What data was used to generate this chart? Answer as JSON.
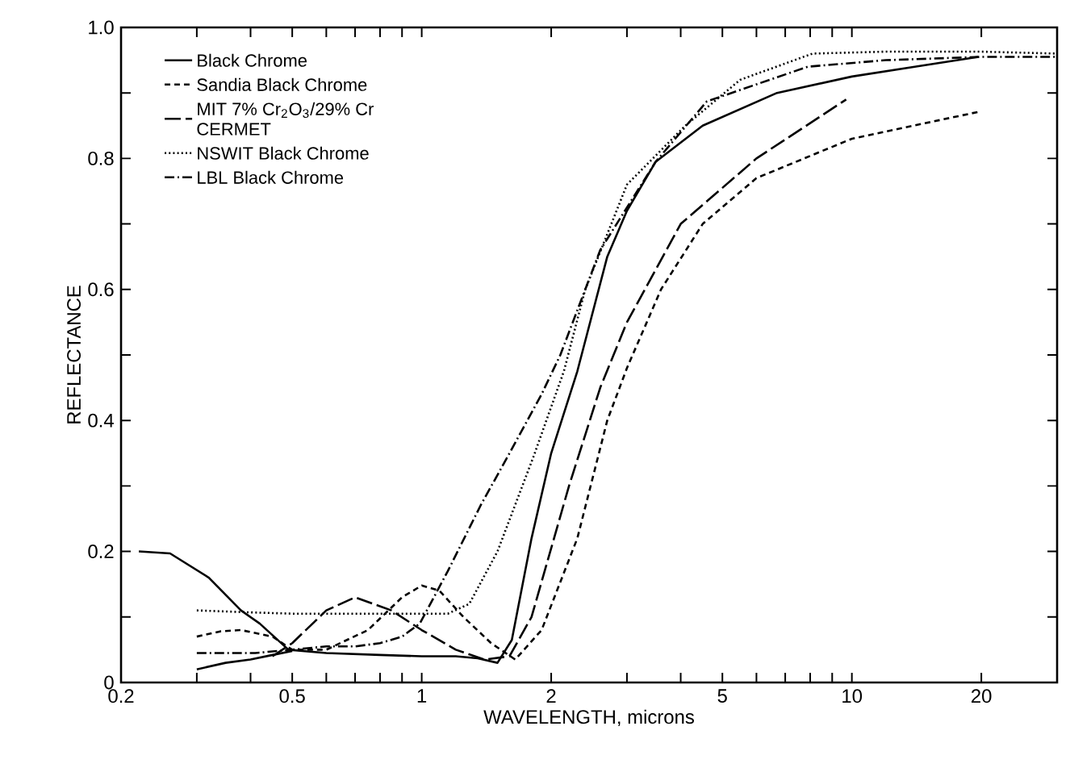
{
  "chart_data": {
    "type": "line",
    "xlabel": "WAVELENGTH, microns",
    "ylabel": "REFLECTANCE",
    "log": "x",
    "legend": "top left",
    "xlim": [
      0.2,
      30
    ],
    "ylim": [
      0,
      1.0
    ],
    "xticks": [
      0.2,
      {
        "value": 0.3,
        "label": null
      },
      {
        "value": 0.4,
        "label": null
      },
      0.5,
      {
        "value": 0.6,
        "label": null
      },
      {
        "value": 0.7,
        "label": null
      },
      {
        "value": 0.8,
        "label": null
      },
      {
        "value": 0.9,
        "label": null
      },
      1,
      2,
      {
        "value": 3,
        "label": null
      },
      {
        "value": 4,
        "label": null
      },
      5,
      {
        "value": 6,
        "label": null
      },
      {
        "value": 7,
        "label": null
      },
      {
        "value": 8,
        "label": null
      },
      {
        "value": 9,
        "label": null
      },
      10,
      20
    ],
    "yticks": [
      0,
      {
        "value": 0.1,
        "label": null
      },
      0.2,
      {
        "value": 0.3,
        "label": null
      },
      0.4,
      {
        "value": 0.5,
        "label": null
      },
      0.6,
      {
        "value": 0.7,
        "label": null
      },
      0.8,
      {
        "value": 0.9,
        "label": null
      },
      {
        "value": 1.0,
        "label": "1.0"
      }
    ],
    "series": [
      {
        "name": "Black Chrome",
        "color": "#000000",
        "line_style": "solid",
        "x": [
          0.22,
          0.26,
          0.32,
          0.38,
          0.42,
          0.49,
          0.6,
          0.8,
          1.0,
          1.2,
          1.35,
          1.5,
          1.62,
          1.8,
          2.0,
          2.3,
          2.7,
          3.0,
          3.5,
          4.5,
          6.7,
          10,
          14,
          19.7
        ],
        "values": [
          0.2,
          0.197,
          0.16,
          0.11,
          0.09,
          0.05,
          0.045,
          0.042,
          0.04,
          0.04,
          0.037,
          0.03,
          0.065,
          0.22,
          0.35,
          0.475,
          0.65,
          0.72,
          0.795,
          0.85,
          0.9,
          0.925,
          0.94,
          0.955
        ]
      },
      {
        "name": "Sandia Black Chrome",
        "color": "#000000",
        "line_style": "dashed",
        "x": [
          0.3,
          0.34,
          0.38,
          0.45,
          0.5,
          0.6,
          0.75,
          0.9,
          1.0,
          1.1,
          1.25,
          1.45,
          1.65,
          1.9,
          2.3,
          2.7,
          3.0,
          3.6,
          4.5,
          6,
          10,
          20
        ],
        "values": [
          0.07,
          0.078,
          0.08,
          0.07,
          0.05,
          0.05,
          0.08,
          0.13,
          0.148,
          0.14,
          0.1,
          0.06,
          0.035,
          0.08,
          0.22,
          0.4,
          0.48,
          0.6,
          0.7,
          0.77,
          0.83,
          0.872
        ]
      },
      {
        "name": "MIT 7% Cr$_{2}$O$_{3}$/29% Cr CERMET",
        "color": "#000000",
        "line_style": "long dashed",
        "x": [
          0.45,
          0.5,
          0.6,
          0.7,
          0.85,
          1.0,
          1.2,
          1.4,
          1.6,
          1.8,
          2.2,
          2.6,
          3.0,
          4,
          6,
          9.7
        ],
        "values": [
          0.04,
          0.06,
          0.11,
          0.13,
          0.11,
          0.08,
          0.05,
          0.035,
          0.04,
          0.1,
          0.3,
          0.45,
          0.55,
          0.7,
          0.8,
          0.89
        ]
      },
      {
        "name": "NSWIT Black Chrome",
        "color": "#000000",
        "line_style": "dotted",
        "x": [
          0.3,
          0.4,
          0.5,
          0.7,
          1.0,
          1.15,
          1.29,
          1.5,
          1.82,
          2.14,
          2.4,
          3.0,
          4.1,
          5.5,
          8.1,
          12,
          20,
          30
        ],
        "values": [
          0.11,
          0.107,
          0.105,
          0.105,
          0.105,
          0.105,
          0.12,
          0.2,
          0.345,
          0.475,
          0.6,
          0.76,
          0.85,
          0.92,
          0.96,
          0.963,
          0.963,
          0.96
        ]
      },
      {
        "name": "LBL Black Chrome",
        "color": "#000000",
        "line_style": "dash dot",
        "x": [
          0.3,
          0.35,
          0.41,
          0.5,
          0.6,
          0.7,
          0.8,
          0.9,
          0.99,
          1.15,
          1.37,
          1.6,
          1.9,
          2.1,
          2.6,
          3.5,
          4.6,
          7.9,
          12,
          20,
          30
        ],
        "values": [
          0.045,
          0.045,
          0.045,
          0.05,
          0.055,
          0.055,
          0.06,
          0.07,
          0.09,
          0.17,
          0.27,
          0.35,
          0.44,
          0.5,
          0.66,
          0.795,
          0.887,
          0.94,
          0.95,
          0.955,
          0.955
        ]
      },
      {
        "color": "#000000",
        "line_style": "solid",
        "x": [
          0.3,
          0.35,
          0.4,
          0.45,
          0.5
        ],
        "values": [
          0.02,
          0.03,
          0.035,
          0.042,
          0.048
        ]
      }
    ]
  }
}
